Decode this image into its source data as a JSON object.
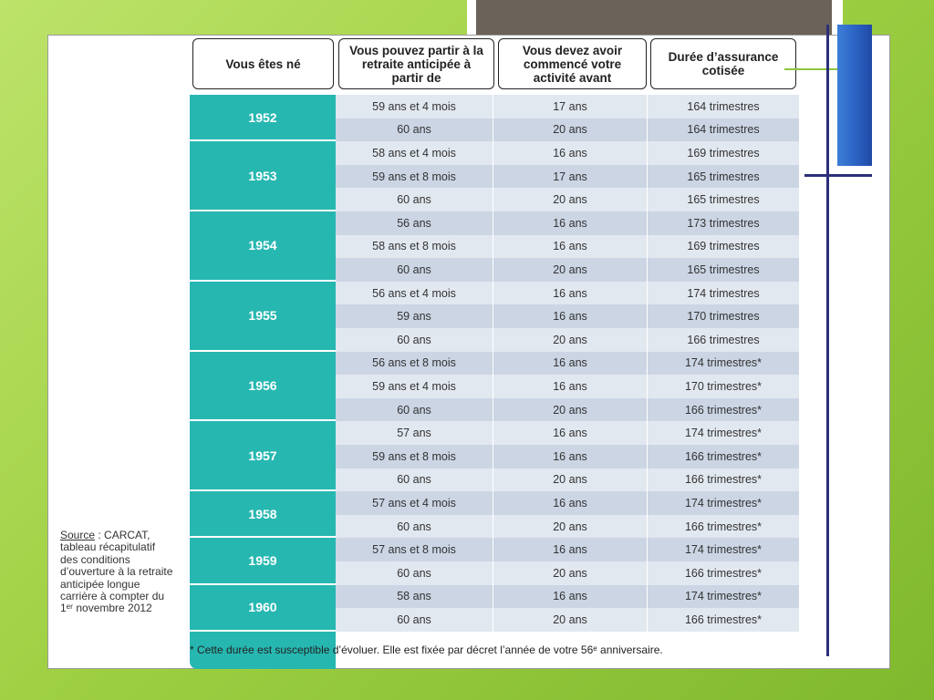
{
  "table": {
    "headers": [
      "Vous êtes né",
      "Vous pouvez partir à la retraite anticipée à partir de",
      "Vous devez avoir commencé votre activité avant",
      "Durée d’assurance cotisée"
    ],
    "groups": [
      {
        "year": "1952",
        "rows": [
          {
            "age": "59 ans et 4 mois",
            "start": "17 ans",
            "duration": "164 trimestres"
          },
          {
            "age": "60 ans",
            "start": "20 ans",
            "duration": "164 trimestres"
          }
        ]
      },
      {
        "year": "1953",
        "rows": [
          {
            "age": "58 ans et 4 mois",
            "start": "16 ans",
            "duration": "169 trimestres"
          },
          {
            "age": "59 ans et 8 mois",
            "start": "17 ans",
            "duration": "165 trimestres"
          },
          {
            "age": "60 ans",
            "start": "20 ans",
            "duration": "165 trimestres"
          }
        ]
      },
      {
        "year": "1954",
        "rows": [
          {
            "age": "56 ans",
            "start": "16 ans",
            "duration": "173 trimestres"
          },
          {
            "age": "58 ans et 8 mois",
            "start": "16 ans",
            "duration": "169 trimestres"
          },
          {
            "age": "60 ans",
            "start": "20 ans",
            "duration": "165 trimestres"
          }
        ]
      },
      {
        "year": "1955",
        "rows": [
          {
            "age": "56 ans et 4 mois",
            "start": "16 ans",
            "duration": "174 trimestres"
          },
          {
            "age": "59 ans",
            "start": "16 ans",
            "duration": "170 trimestres"
          },
          {
            "age": "60 ans",
            "start": "20 ans",
            "duration": "166 trimestres"
          }
        ]
      },
      {
        "year": "1956",
        "rows": [
          {
            "age": "56 ans et 8 mois",
            "start": "16 ans",
            "duration": "174 trimestres*"
          },
          {
            "age": "59 ans et 4 mois",
            "start": "16 ans",
            "duration": "170 trimestres*"
          },
          {
            "age": "60 ans",
            "start": "20 ans",
            "duration": "166 trimestres*"
          }
        ]
      },
      {
        "year": "1957",
        "rows": [
          {
            "age": "57 ans",
            "start": "16 ans",
            "duration": "174 trimestres*"
          },
          {
            "age": "59 ans et 8 mois",
            "start": "16 ans",
            "duration": "166 trimestres*"
          },
          {
            "age": "60 ans",
            "start": "20 ans",
            "duration": "166 trimestres*"
          }
        ]
      },
      {
        "year": "1958",
        "rows": [
          {
            "age": "57 ans et 4 mois",
            "start": "16 ans",
            "duration": "174 trimestres*"
          },
          {
            "age": "60 ans",
            "start": "20 ans",
            "duration": "166 trimestres*"
          }
        ]
      },
      {
        "year": "1959",
        "rows": [
          {
            "age": "57 ans et 8 mois",
            "start": "16 ans",
            "duration": "174 trimestres*"
          },
          {
            "age": "60 ans",
            "start": "20 ans",
            "duration": "166 trimestres*"
          }
        ]
      },
      {
        "year": "1960",
        "rows": [
          {
            "age": "58 ans",
            "start": "16 ans",
            "duration": "174 trimestres*"
          },
          {
            "age": "60 ans",
            "start": "20 ans",
            "duration": "166 trimestres*"
          }
        ]
      }
    ],
    "footnote": "* Cette durée est susceptible d’évoluer. Elle est fixée par décret l’année de votre 56ᵉ anniversaire."
  },
  "source": {
    "label": "Source",
    "text": " : CARCAT, tableau récapitulatif des conditions d’ouverture à la retraite anticipée longue carrière à compter du 1ᵉʳ novembre 2012"
  },
  "colors": {
    "year_column": "#27b7b1",
    "row_light": "#e2e8f0",
    "row_dark": "#cbd5e4",
    "accent_line": "#2b2f7a",
    "accent_bar": "#2a5fc0",
    "background": "#9fd043"
  }
}
